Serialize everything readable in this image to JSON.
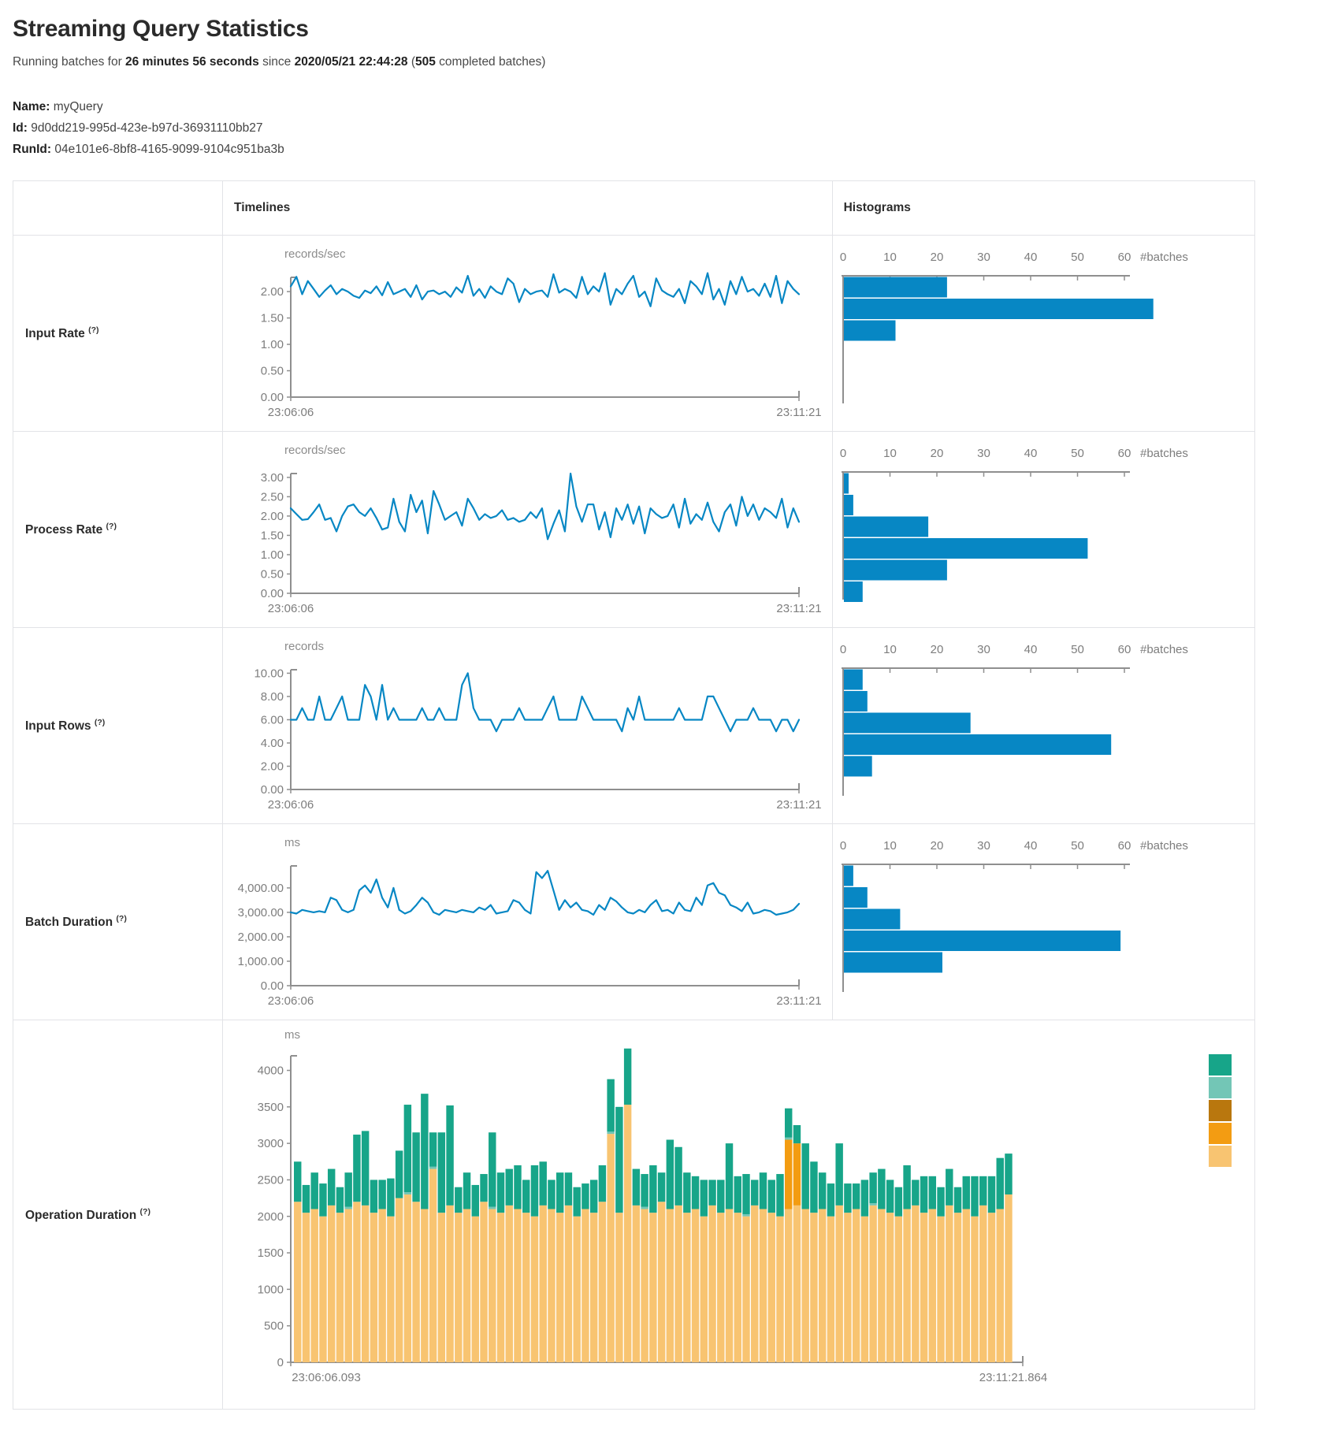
{
  "page": {
    "title": "Streaming Query Statistics",
    "subtitle_prefix": "Running batches for ",
    "duration": "26 minutes 56 seconds",
    "subtitle_mid": " since ",
    "start_time": "2020/05/21 22:44:28",
    "paren_open": " (",
    "completed_batches": "505",
    "subtitle_suffix": " completed batches)",
    "name_label": "Name:",
    "name_value": " myQuery",
    "id_label": "Id:",
    "id_value": " 9d0dd219-995d-423e-b97d-36931110bb27",
    "runid_label": "RunId:",
    "runid_value": " 04e101e6-8bf8-4165-9099-9104c951ba3b"
  },
  "table": {
    "header": {
      "timelines": "Timelines",
      "histograms": "Histograms"
    },
    "rows": [
      {
        "label": "Input Rate",
        "help": "(?)"
      },
      {
        "label": "Process Rate",
        "help": "(?)"
      },
      {
        "label": "Input Rows",
        "help": "(?)"
      },
      {
        "label": "Batch Duration",
        "help": "(?)"
      },
      {
        "label": "Operation Duration",
        "help": "(?)"
      }
    ]
  },
  "chart_data": {
    "timeline_x": {
      "start": "23:06:06",
      "end": "23:11:21"
    },
    "line_color": "#0787C4",
    "axis_color": "#8f8f8f",
    "histogram": {
      "ticks": [
        0,
        10,
        20,
        30,
        40,
        50,
        60
      ],
      "axis_label": "#batches",
      "bar_color": "#0787C4"
    },
    "metrics": {
      "input_rate": {
        "type": "line",
        "unit": "records/sec",
        "y_top": 2.27,
        "y_ticks": [
          {
            "v": 2.0,
            "label": "2.00"
          },
          {
            "v": 1.5,
            "label": "1.50"
          },
          {
            "v": 1.0,
            "label": "1.00"
          },
          {
            "v": 0.5,
            "label": "0.50"
          },
          {
            "v": 0.0,
            "label": "0.00"
          }
        ],
        "values": [
          2.1,
          2.28,
          1.95,
          2.2,
          2.05,
          1.9,
          2.02,
          2.12,
          1.95,
          2.05,
          2.0,
          1.92,
          1.88,
          2.02,
          1.97,
          2.1,
          1.93,
          2.18,
          1.95,
          2.0,
          2.05,
          1.9,
          2.12,
          1.85,
          2.0,
          2.02,
          1.95,
          2.0,
          1.9,
          2.08,
          1.98,
          2.3,
          1.92,
          2.05,
          1.88,
          2.1,
          2.0,
          1.95,
          2.25,
          2.15,
          1.8,
          2.05,
          1.95,
          2.0,
          2.02,
          1.9,
          2.33,
          1.98,
          2.05,
          2.0,
          1.88,
          2.28,
          1.95,
          2.1,
          2.0,
          2.35,
          1.75,
          2.05,
          1.95,
          2.15,
          2.3,
          1.9,
          2.0,
          1.72,
          2.25,
          2.02,
          1.95,
          1.9,
          2.05,
          1.78,
          2.2,
          2.1,
          1.95,
          2.35,
          1.85,
          2.05,
          1.75,
          2.2,
          1.95,
          2.28,
          2.0,
          2.05,
          1.92,
          2.15,
          1.9,
          2.3,
          1.78,
          2.2,
          2.05,
          1.95
        ],
        "hist_bars": [
          22,
          66,
          11
        ]
      },
      "process_rate": {
        "type": "line",
        "unit": "records/sec",
        "y_top": 3.1,
        "y_ticks": [
          {
            "v": 3.0,
            "label": "3.00"
          },
          {
            "v": 2.5,
            "label": "2.50"
          },
          {
            "v": 2.0,
            "label": "2.00"
          },
          {
            "v": 1.5,
            "label": "1.50"
          },
          {
            "v": 1.0,
            "label": "1.00"
          },
          {
            "v": 0.5,
            "label": "0.50"
          },
          {
            "v": 0.0,
            "label": "0.00"
          }
        ],
        "values": [
          2.2,
          2.05,
          1.9,
          1.92,
          2.1,
          2.3,
          1.9,
          1.95,
          1.6,
          2.0,
          2.25,
          2.3,
          2.1,
          2.0,
          2.2,
          1.95,
          1.65,
          1.7,
          2.45,
          1.85,
          1.6,
          2.55,
          2.1,
          2.4,
          1.55,
          2.65,
          2.3,
          1.9,
          2.0,
          2.1,
          1.75,
          2.45,
          2.2,
          1.9,
          2.05,
          1.95,
          2.0,
          2.15,
          1.9,
          1.95,
          1.85,
          1.9,
          2.1,
          1.95,
          2.2,
          1.4,
          1.8,
          2.15,
          1.6,
          3.1,
          2.25,
          1.85,
          2.3,
          2.3,
          1.65,
          2.1,
          1.45,
          2.2,
          1.9,
          2.3,
          1.8,
          2.25,
          1.55,
          2.2,
          2.05,
          1.95,
          2.0,
          2.3,
          1.7,
          2.45,
          1.8,
          2.05,
          1.9,
          2.35,
          1.85,
          1.6,
          2.1,
          2.3,
          1.75,
          2.5,
          2.0,
          2.3,
          1.9,
          2.2,
          2.1,
          1.95,
          2.45,
          1.7,
          2.2,
          1.85
        ],
        "hist_bars": [
          1,
          2,
          18,
          52,
          22,
          4
        ]
      },
      "input_rows": {
        "type": "line",
        "unit": "records",
        "y_top": 10.3,
        "y_ticks": [
          {
            "v": 10,
            "label": "10.00"
          },
          {
            "v": 8,
            "label": "8.00"
          },
          {
            "v": 6,
            "label": "6.00"
          },
          {
            "v": 4,
            "label": "4.00"
          },
          {
            "v": 2,
            "label": "2.00"
          },
          {
            "v": 0,
            "label": "0.00"
          }
        ],
        "values": [
          6,
          6,
          7,
          6,
          6,
          8,
          6,
          6,
          7,
          8,
          6,
          6,
          6,
          9,
          8,
          6,
          9,
          6,
          7,
          6,
          6,
          6,
          6,
          7,
          6,
          6,
          7,
          6,
          6,
          6,
          9,
          10,
          7,
          6,
          6,
          6,
          5,
          6,
          6,
          6,
          7,
          6,
          6,
          6,
          6,
          7,
          8,
          6,
          6,
          6,
          6,
          8,
          7,
          6,
          6,
          6,
          6,
          6,
          5,
          7,
          6,
          8,
          6,
          6,
          6,
          6,
          6,
          6,
          7,
          6,
          6,
          6,
          6,
          8,
          8,
          7,
          6,
          5,
          6,
          6,
          6,
          7,
          6,
          6,
          6,
          5,
          6,
          6,
          5,
          6
        ],
        "hist_bars": [
          4,
          5,
          27,
          57,
          6
        ]
      },
      "batch_duration": {
        "type": "line",
        "unit": "ms",
        "y_top": 4900,
        "y_ticks": [
          {
            "v": 4000,
            "label": "4,000.00"
          },
          {
            "v": 3000,
            "label": "3,000.00"
          },
          {
            "v": 2000,
            "label": "2,000.00"
          },
          {
            "v": 1000,
            "label": "1,000.00"
          },
          {
            "v": 0,
            "label": "0.00"
          }
        ],
        "values": [
          3000,
          2950,
          3100,
          3050,
          3000,
          3050,
          3000,
          3600,
          3500,
          3100,
          3000,
          3100,
          3900,
          4100,
          3800,
          4350,
          3600,
          3200,
          4000,
          3100,
          2950,
          3050,
          3300,
          3600,
          3400,
          3000,
          2900,
          3100,
          3050,
          3000,
          3100,
          3050,
          3000,
          3200,
          3100,
          3300,
          2950,
          3000,
          3050,
          3500,
          3400,
          3100,
          2950,
          4650,
          4400,
          4700,
          3900,
          3100,
          3500,
          3200,
          3400,
          3100,
          3050,
          2900,
          3300,
          3100,
          3600,
          3450,
          3200,
          3000,
          2950,
          3100,
          3000,
          3300,
          3500,
          3050,
          3100,
          2950,
          3400,
          3100,
          3050,
          3600,
          3300,
          4100,
          4200,
          3800,
          3700,
          3300,
          3200,
          3050,
          3400,
          2950,
          3000,
          3100,
          3050,
          2900,
          2950,
          3000,
          3100,
          3350
        ],
        "hist_bars": [
          2,
          5,
          12,
          59,
          21
        ]
      }
    },
    "operation_duration": {
      "type": "stacked_bar",
      "unit": "ms",
      "x_start": "23:06:06.093",
      "x_end": "23:11:21.864",
      "y_top": 4200,
      "y_ticks": [
        0,
        500,
        1000,
        1500,
        2000,
        2500,
        3000,
        3500,
        4000
      ],
      "legend_colors_top_to_bottom": [
        "#17A589",
        "#73C6B6",
        "#B9770E",
        "#F39C12",
        "#F8C471"
      ],
      "bars": [
        [
          2200,
          0,
          0,
          0,
          550
        ],
        [
          2050,
          0,
          0,
          0,
          380
        ],
        [
          2100,
          0,
          0,
          0,
          500
        ],
        [
          2000,
          0,
          0,
          0,
          450
        ],
        [
          2150,
          0,
          0,
          0,
          500
        ],
        [
          2050,
          0,
          0,
          0,
          350
        ],
        [
          2100,
          0,
          0,
          30,
          470
        ],
        [
          2200,
          0,
          0,
          0,
          920
        ],
        [
          2150,
          0,
          0,
          0,
          1020
        ],
        [
          2050,
          0,
          0,
          0,
          450
        ],
        [
          2100,
          0,
          0,
          0,
          400
        ],
        [
          2000,
          0,
          0,
          0,
          520
        ],
        [
          2250,
          0,
          0,
          0,
          650
        ],
        [
          2300,
          0,
          0,
          30,
          1200
        ],
        [
          2200,
          0,
          0,
          0,
          950
        ],
        [
          2100,
          0,
          0,
          0,
          1580
        ],
        [
          2650,
          0,
          0,
          30,
          470
        ],
        [
          2050,
          0,
          0,
          0,
          1100
        ],
        [
          2150,
          0,
          0,
          0,
          1370
        ],
        [
          2050,
          0,
          0,
          0,
          350
        ],
        [
          2100,
          0,
          0,
          0,
          500
        ],
        [
          2000,
          0,
          0,
          0,
          430
        ],
        [
          2200,
          0,
          0,
          0,
          380
        ],
        [
          2100,
          0,
          0,
          30,
          1020
        ],
        [
          2050,
          0,
          0,
          0,
          550
        ],
        [
          2150,
          0,
          0,
          0,
          500
        ],
        [
          2100,
          0,
          0,
          0,
          600
        ],
        [
          2050,
          0,
          0,
          0,
          450
        ],
        [
          2000,
          0,
          0,
          0,
          700
        ],
        [
          2150,
          0,
          0,
          0,
          600
        ],
        [
          2100,
          0,
          0,
          0,
          400
        ],
        [
          2050,
          0,
          0,
          0,
          550
        ],
        [
          2150,
          0,
          0,
          0,
          450
        ],
        [
          2000,
          0,
          0,
          0,
          400
        ],
        [
          2100,
          0,
          0,
          0,
          350
        ],
        [
          2050,
          0,
          0,
          0,
          450
        ],
        [
          2200,
          0,
          0,
          0,
          500
        ],
        [
          3130,
          0,
          0,
          30,
          720
        ],
        [
          2050,
          0,
          0,
          0,
          1450
        ],
        [
          3530,
          0,
          0,
          0,
          770
        ],
        [
          2150,
          0,
          0,
          0,
          500
        ],
        [
          2100,
          0,
          0,
          30,
          450
        ],
        [
          2050,
          0,
          0,
          0,
          650
        ],
        [
          2200,
          0,
          0,
          0,
          400
        ],
        [
          2100,
          0,
          0,
          0,
          950
        ],
        [
          2150,
          0,
          0,
          0,
          800
        ],
        [
          2050,
          0,
          0,
          0,
          550
        ],
        [
          2100,
          0,
          0,
          0,
          450
        ],
        [
          2000,
          0,
          0,
          0,
          500
        ],
        [
          2150,
          0,
          0,
          0,
          350
        ],
        [
          2050,
          0,
          0,
          0,
          450
        ],
        [
          2100,
          0,
          0,
          0,
          900
        ],
        [
          2050,
          0,
          0,
          0,
          500
        ],
        [
          2000,
          0,
          0,
          30,
          550
        ],
        [
          2150,
          0,
          0,
          0,
          350
        ],
        [
          2100,
          0,
          0,
          0,
          500
        ],
        [
          2050,
          0,
          0,
          0,
          450
        ],
        [
          2000,
          0,
          0,
          0,
          580
        ],
        [
          2100,
          950,
          0,
          30,
          400
        ],
        [
          2150,
          850,
          0,
          0,
          250
        ],
        [
          2100,
          0,
          0,
          0,
          900
        ],
        [
          2050,
          0,
          0,
          0,
          700
        ],
        [
          2100,
          0,
          0,
          0,
          500
        ],
        [
          2000,
          0,
          0,
          0,
          450
        ],
        [
          2150,
          0,
          0,
          0,
          850
        ],
        [
          2050,
          0,
          0,
          0,
          400
        ],
        [
          2100,
          0,
          0,
          0,
          350
        ],
        [
          2000,
          0,
          0,
          0,
          500
        ],
        [
          2150,
          0,
          0,
          30,
          420
        ],
        [
          2100,
          0,
          0,
          0,
          550
        ],
        [
          2050,
          0,
          0,
          0,
          450
        ],
        [
          2000,
          0,
          0,
          0,
          400
        ],
        [
          2100,
          0,
          0,
          0,
          600
        ],
        [
          2150,
          0,
          0,
          0,
          350
        ],
        [
          2050,
          0,
          0,
          0,
          500
        ],
        [
          2100,
          0,
          0,
          0,
          450
        ],
        [
          2000,
          0,
          0,
          0,
          400
        ],
        [
          2150,
          0,
          0,
          0,
          500
        ],
        [
          2050,
          0,
          0,
          0,
          350
        ],
        [
          2100,
          0,
          0,
          0,
          450
        ],
        [
          2000,
          0,
          0,
          0,
          550
        ],
        [
          2150,
          0,
          0,
          0,
          400
        ],
        [
          2050,
          0,
          0,
          0,
          500
        ],
        [
          2100,
          0,
          0,
          0,
          700
        ],
        [
          2300,
          0,
          0,
          0,
          560
        ]
      ]
    }
  }
}
